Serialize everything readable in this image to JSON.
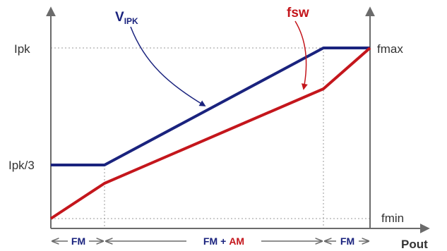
{
  "left_axis": {
    "top_label": "Ipk",
    "mid_label": "Ipk/3"
  },
  "right_axis": {
    "top_label": "fmax",
    "bottom_label": "fmin"
  },
  "x_axis_label": "Pout",
  "curves": {
    "vipk": {
      "label_main": "V",
      "label_sub": "IPK",
      "color": "#1a237e"
    },
    "fsw": {
      "label": "fsw",
      "color": "#c4161c"
    }
  },
  "regions": {
    "left": "FM",
    "middle_fm": "FM",
    "middle_plus": "+",
    "middle_am": "AM",
    "right": "FM"
  },
  "colors": {
    "axis": "#6b6b6b",
    "grid": "#9a9a9a",
    "navy": "#1a237e",
    "red": "#c4161c"
  }
}
